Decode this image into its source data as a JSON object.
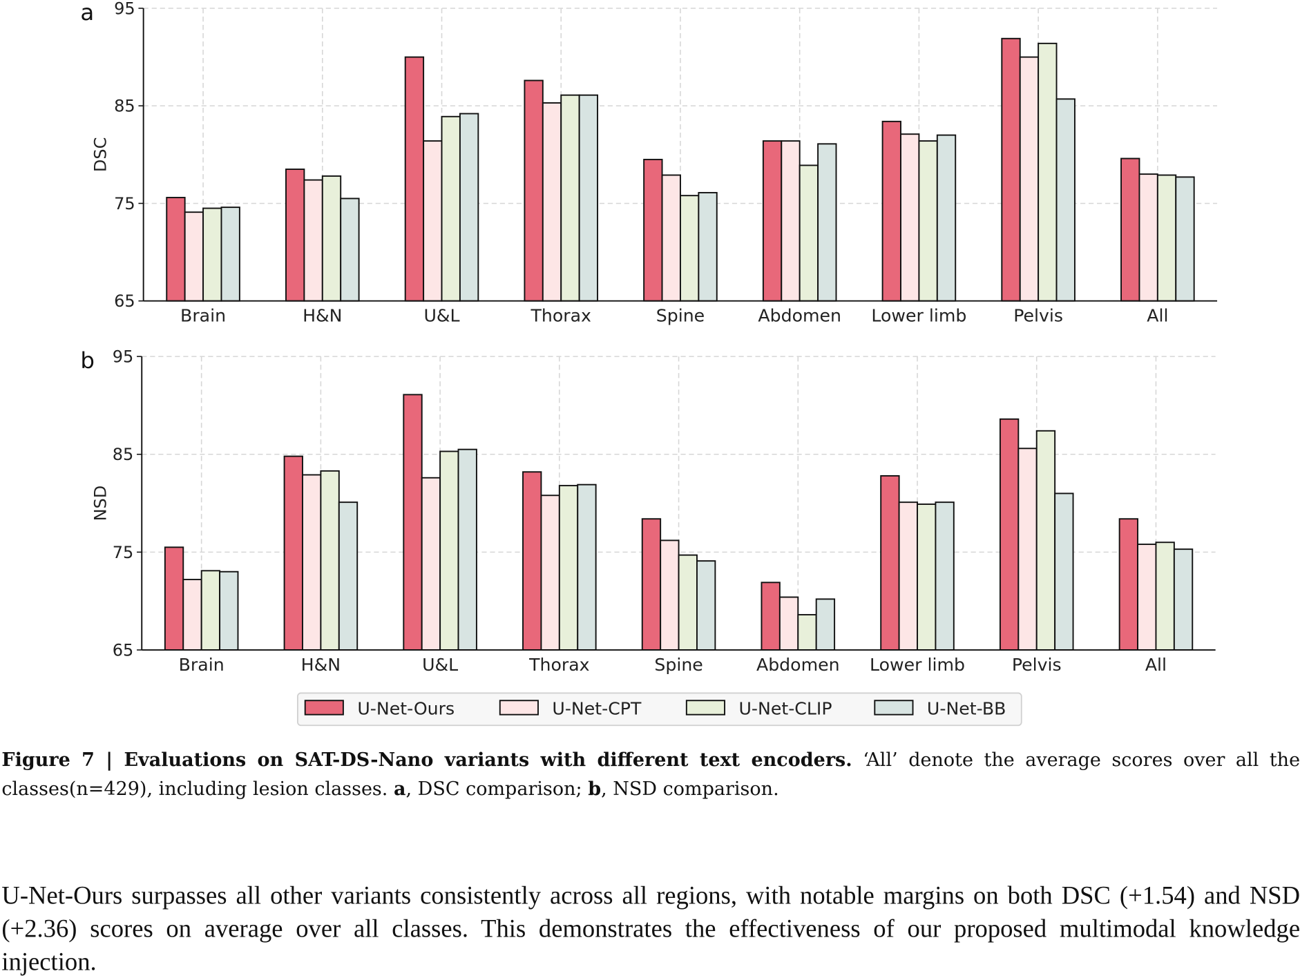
{
  "chart_data": [
    {
      "type": "bar",
      "panel_label": "a",
      "ylabel": "DSC",
      "ylim": [
        65,
        95
      ],
      "yticks": [
        65,
        75,
        85,
        95
      ],
      "grid": true,
      "categories": [
        "Brain",
        "H&N",
        "U&L",
        "Thorax",
        "Spine",
        "Abdomen",
        "Lower limb",
        "Pelvis",
        "All"
      ],
      "series": [
        {
          "name": "U-Net-Ours",
          "color": "#E8687A",
          "values": [
            75.6,
            78.5,
            90.0,
            87.6,
            79.5,
            81.4,
            83.4,
            91.9,
            79.6
          ]
        },
        {
          "name": "U-Net-CPT",
          "color": "#FDE6E6",
          "values": [
            74.1,
            77.4,
            81.4,
            85.3,
            77.9,
            81.4,
            82.1,
            90.0,
            78.0
          ]
        },
        {
          "name": "U-Net-CLIP",
          "color": "#E8F0DA",
          "values": [
            74.5,
            77.8,
            83.9,
            86.1,
            75.8,
            78.9,
            81.4,
            91.4,
            77.9
          ]
        },
        {
          "name": "U-Net-BB",
          "color": "#D8E4E2",
          "values": [
            74.6,
            75.5,
            84.2,
            86.1,
            76.1,
            81.1,
            82.0,
            85.7,
            77.7
          ]
        }
      ]
    },
    {
      "type": "bar",
      "panel_label": "b",
      "ylabel": "NSD",
      "ylim": [
        65,
        95
      ],
      "yticks": [
        65,
        75,
        85,
        95
      ],
      "grid": true,
      "categories": [
        "Brain",
        "H&N",
        "U&L",
        "Thorax",
        "Spine",
        "Abdomen",
        "Lower limb",
        "Pelvis",
        "All"
      ],
      "series": [
        {
          "name": "U-Net-Ours",
          "color": "#E8687A",
          "values": [
            75.5,
            84.8,
            91.1,
            83.2,
            78.4,
            71.9,
            82.8,
            88.6,
            78.4
          ]
        },
        {
          "name": "U-Net-CPT",
          "color": "#FDE6E6",
          "values": [
            72.2,
            82.9,
            82.6,
            80.8,
            76.2,
            70.4,
            80.1,
            85.6,
            75.8
          ]
        },
        {
          "name": "U-Net-CLIP",
          "color": "#E8F0DA",
          "values": [
            73.1,
            83.3,
            85.3,
            81.8,
            74.7,
            68.6,
            79.9,
            87.4,
            76.0
          ]
        },
        {
          "name": "U-Net-BB",
          "color": "#D8E4E2",
          "values": [
            73.0,
            80.1,
            85.5,
            81.9,
            74.1,
            70.2,
            80.1,
            81.0,
            75.3
          ]
        }
      ]
    }
  ],
  "legend": {
    "placement": "bottom-center",
    "items": [
      "U-Net-Ours",
      "U-Net-CPT",
      "U-Net-CLIP",
      "U-Net-BB"
    ]
  },
  "caption": {
    "label": "Figure 7 | Evaluations on SAT-DS-Nano variants with different text encoders.",
    "text1": " ‘All’ denote the average scores over all the classes(n=429), including lesion classes. ",
    "a": "a",
    "text2": ", DSC comparison; ",
    "b": "b",
    "text3": ", NSD comparison."
  },
  "paragraph": "U-Net-Ours surpasses all other variants consistently across all regions, with notable margins on both DSC (+1.54) and NSD (+2.36) scores on average over all classes. This demonstrates the effectiveness of our proposed multimodal knowledge injection."
}
